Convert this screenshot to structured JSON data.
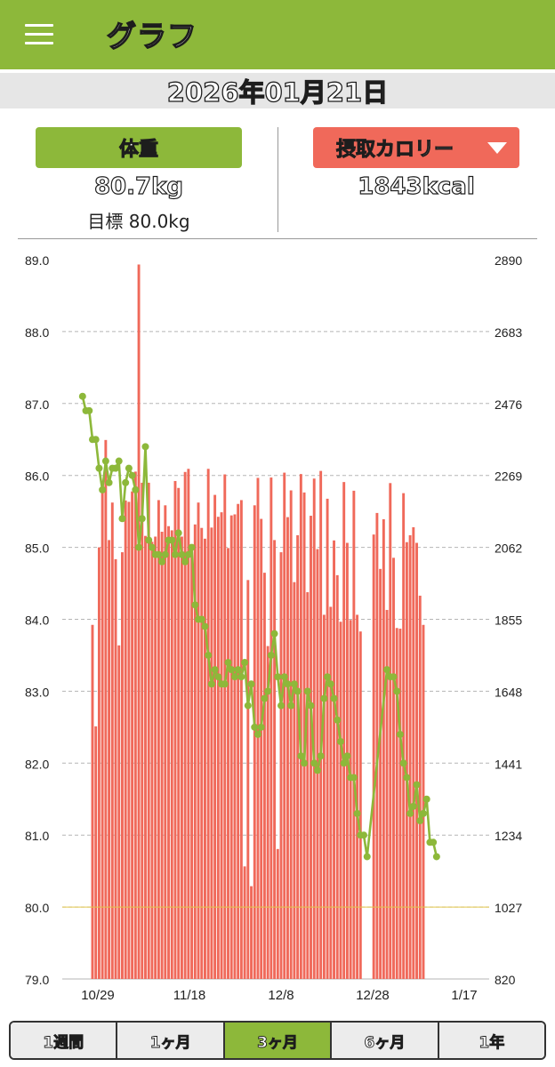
{
  "app": {
    "title": "グラフ"
  },
  "date": "2026年01月21日",
  "metrics": {
    "left": {
      "label": "体重",
      "value": "80.7kg",
      "goal": "目標 80.0kg"
    },
    "right": {
      "label": "摂取カロリー",
      "value": "1843kcal"
    }
  },
  "chart_data": {
    "type": "bar+line",
    "x_tick_labels": [
      "10/29",
      "11/18",
      "12/8",
      "12/28",
      "1/17"
    ],
    "left_axis": {
      "ticks": [
        "89.0",
        "88.0",
        "87.0",
        "86.0",
        "85.0",
        "84.0",
        "83.0",
        "82.0",
        "81.0",
        "80.0",
        "79.0"
      ],
      "range": [
        79.0,
        89.0
      ]
    },
    "right_axis": {
      "ticks": [
        "2890",
        "2683",
        "2476",
        "2269",
        "2062",
        "1855",
        "1648",
        "1441",
        "1234",
        "1027",
        "820"
      ],
      "range": [
        820,
        2890
      ]
    },
    "goal_weight": 80.0,
    "colors": {
      "bars": "#f0695a",
      "line": "#8db83a",
      "goal_line": "#e3c64a",
      "grid": "#b5b5b5"
    },
    "series": [
      {
        "kind": "bar",
        "x": [
          9,
          10,
          11,
          12,
          13,
          14,
          15,
          16,
          17,
          18,
          19,
          20,
          21,
          22,
          23,
          24,
          25,
          26,
          27,
          28,
          29,
          30,
          31,
          32,
          33,
          34,
          35,
          36,
          37,
          38,
          39,
          40,
          41,
          42,
          43,
          44,
          45,
          46,
          47,
          48,
          49,
          50,
          51,
          52,
          53,
          54,
          55,
          56,
          57,
          58,
          59,
          60,
          61,
          62,
          63,
          64,
          65,
          66,
          67,
          68,
          69,
          70,
          71,
          72,
          73,
          74,
          75,
          76,
          77,
          78,
          79,
          80,
          81,
          82,
          83,
          84,
          85,
          86,
          87,
          88,
          89,
          90,
          94,
          95,
          96,
          97,
          98,
          99,
          100,
          101,
          102,
          103,
          104,
          105,
          106,
          107,
          108,
          109
        ],
        "values": [
          1839,
          1547,
          2062,
          2253,
          2371,
          2083,
          2191,
          2028,
          1780,
          2048,
          2197,
          2193,
          2223,
          2280,
          2876,
          2248,
          2095,
          2248,
          2078,
          2093,
          2198,
          2107,
          2183,
          2123,
          2111,
          2253,
          2233,
          2093,
          2279,
          2288,
          2049,
          2128,
          2191,
          2118,
          2087,
          2288,
          2119,
          2213,
          2150,
          2163,
          2272,
          2060,
          2154,
          2157,
          2187,
          2198,
          1144,
          1968,
          1087,
          2183,
          2262,
          2144,
          1989,
          1778,
          2263,
          2083,
          1194,
          2048,
          2277,
          2149,
          2226,
          1962,
          2097,
          2273,
          2220,
          1933,
          2153,
          2260,
          2057,
          2282,
          1868,
          2202,
          1891,
          2082,
          1982,
          1848,
          2250,
          2075,
          1853,
          2225,
          1868,
          1820,
          2099,
          2161,
          2000,
          2143,
          1882,
          2247,
          2032,
          1830,
          1828,
          2218,
          2077,
          2097,
          2120,
          2075,
          1923,
          1839
        ]
      },
      {
        "kind": "line",
        "x": [
          6,
          7,
          8,
          9,
          10,
          11,
          12,
          13,
          14,
          15,
          16,
          17,
          18,
          19,
          20,
          21,
          22,
          23,
          24,
          25,
          26,
          27,
          28,
          29,
          30,
          31,
          32,
          33,
          34,
          35,
          36,
          37,
          38,
          39,
          40,
          41,
          42,
          43,
          44,
          45,
          46,
          47,
          48,
          49,
          50,
          51,
          52,
          53,
          54,
          55,
          56,
          57,
          58,
          59,
          60,
          61,
          62,
          63,
          64,
          65,
          66,
          67,
          68,
          69,
          70,
          71,
          72,
          73,
          74,
          75,
          76,
          77,
          78,
          79,
          80,
          81,
          82,
          83,
          84,
          85,
          86,
          87,
          88,
          89,
          90,
          91,
          92,
          98,
          99,
          100,
          101,
          102,
          103,
          104,
          105,
          106,
          107,
          108,
          109,
          110,
          111,
          112,
          113
        ],
        "values": [
          87.1,
          86.9,
          86.9,
          86.5,
          86.5,
          86.1,
          85.8,
          86.2,
          85.9,
          86.1,
          86.1,
          86.2,
          85.4,
          85.9,
          86.1,
          86.0,
          85.8,
          85.0,
          85.4,
          86.4,
          85.1,
          85.0,
          84.9,
          84.9,
          84.8,
          84.9,
          85.1,
          85.1,
          84.9,
          85.2,
          84.9,
          84.8,
          84.9,
          85.0,
          84.2,
          84.0,
          84.0,
          83.9,
          83.5,
          83.1,
          83.3,
          83.2,
          83.1,
          83.1,
          83.4,
          83.3,
          83.2,
          83.3,
          83.2,
          83.4,
          82.8,
          83.1,
          82.5,
          82.4,
          82.5,
          82.9,
          83.0,
          83.5,
          83.8,
          83.2,
          82.8,
          83.2,
          83.1,
          82.8,
          83.1,
          83.0,
          82.1,
          82.0,
          83.0,
          82.8,
          82.0,
          81.9,
          82.1,
          82.9,
          83.2,
          83.1,
          82.9,
          82.6,
          82.3,
          82.0,
          82.1,
          81.8,
          81.8,
          81.3,
          81.0,
          81.0,
          80.7,
          83.3,
          83.2,
          83.2,
          83.0,
          82.4,
          82.0,
          81.8,
          81.3,
          81.4,
          81.7,
          81.2,
          81.3,
          81.5,
          80.9,
          80.9,
          80.7
        ]
      }
    ]
  },
  "tabs": [
    {
      "label": "1週間",
      "active": false
    },
    {
      "label": "1ヶ月",
      "active": false
    },
    {
      "label": "3ヶ月",
      "active": true
    },
    {
      "label": "6ヶ月",
      "active": false
    },
    {
      "label": "1年",
      "active": false
    }
  ]
}
